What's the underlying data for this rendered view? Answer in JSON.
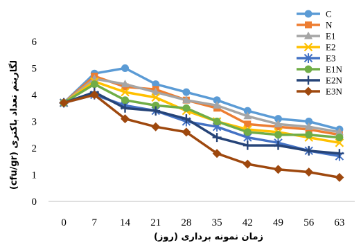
{
  "chart_data": {
    "type": "line",
    "title": "",
    "xlabel": "زمان نمونه برداری (روز)",
    "ylabel": "لگاریتم تعداد باکتری (cfu/gr)",
    "x": [
      0,
      7,
      14,
      21,
      28,
      35,
      42,
      49,
      56,
      63
    ],
    "ylim": [
      0,
      6
    ],
    "yticks": [
      0,
      1,
      2,
      3,
      4,
      5,
      6
    ],
    "grid": false,
    "legend_position": "right",
    "series": [
      {
        "name": "C",
        "color": "#5B9BD5",
        "marker": "circle",
        "values": [
          3.7,
          4.8,
          5.0,
          4.4,
          4.1,
          3.8,
          3.4,
          3.1,
          3.0,
          2.7
        ]
      },
      {
        "name": "N",
        "color": "#ED7D31",
        "marker": "square",
        "values": [
          3.7,
          4.7,
          4.3,
          4.2,
          3.8,
          3.5,
          2.9,
          2.8,
          2.7,
          2.5
        ]
      },
      {
        "name": "E1",
        "color": "#A5A5A5",
        "marker": "triangle",
        "values": [
          3.7,
          4.6,
          4.4,
          4.1,
          3.8,
          3.6,
          3.2,
          2.9,
          2.8,
          2.6
        ]
      },
      {
        "name": "E2",
        "color": "#FFC000",
        "marker": "x",
        "values": [
          3.7,
          4.5,
          4.1,
          3.9,
          3.4,
          3.0,
          2.7,
          2.6,
          2.4,
          2.2
        ]
      },
      {
        "name": "E3",
        "color": "#4472C4",
        "marker": "star",
        "values": [
          3.7,
          4.0,
          3.6,
          3.4,
          3.0,
          2.8,
          2.4,
          2.2,
          1.9,
          1.7
        ]
      },
      {
        "name": "E1N",
        "color": "#70AD47",
        "marker": "circle",
        "values": [
          3.7,
          4.4,
          3.8,
          3.6,
          3.5,
          3.0,
          2.6,
          2.5,
          2.5,
          2.4
        ]
      },
      {
        "name": "E2N",
        "color": "#264478",
        "marker": "plus",
        "values": [
          3.7,
          4.1,
          3.5,
          3.4,
          3.1,
          2.4,
          2.1,
          2.1,
          1.9,
          1.8
        ]
      },
      {
        "name": "E3N",
        "color": "#9E480E",
        "marker": "diamond",
        "values": [
          3.7,
          4.0,
          3.1,
          2.8,
          2.6,
          1.8,
          1.4,
          1.2,
          1.1,
          0.9
        ]
      }
    ]
  }
}
